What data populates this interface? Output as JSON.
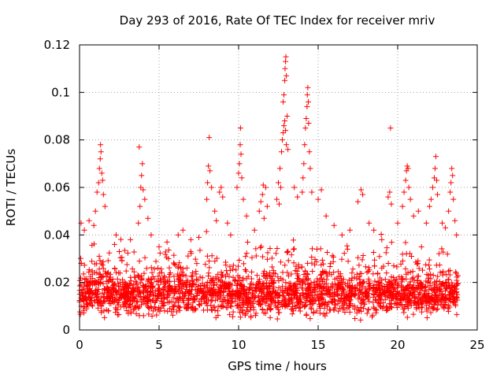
{
  "chart_data": {
    "type": "scatter",
    "title": "Day 293 of 2016, Rate Of TEC Index for receiver mriv",
    "xlabel": "GPS time / hours",
    "ylabel": "ROTI / TECUs",
    "xlim": [
      0,
      25
    ],
    "ylim": [
      0,
      0.12
    ],
    "x_ticks": [
      0,
      5,
      10,
      15,
      20,
      25
    ],
    "x_tick_labels": [
      "0",
      "5",
      "10",
      "15",
      "20",
      "25"
    ],
    "y_ticks": [
      0,
      0.02,
      0.04,
      0.06,
      0.08,
      0.1,
      0.12
    ],
    "y_tick_labels": [
      "0",
      "0.02",
      "0.04",
      "0.06",
      "0.08",
      "0.1",
      "0.12"
    ],
    "grid": true,
    "marker": "+",
    "color": "#ff0000",
    "baseline": {
      "x_range": [
        0,
        23.8
      ],
      "y_center": 0.015,
      "y_spread": 0.012,
      "note": "dense band of ROTI values approx 0.003-0.035 TECU across 0-23.8 h"
    },
    "series": [
      {
        "name": "ROTI",
        "points": [
          [
            0.1,
            0.045
          ],
          [
            0.3,
            0.042
          ],
          [
            0.6,
            0.046
          ],
          [
            0.9,
            0.044
          ],
          [
            1.0,
            0.05
          ],
          [
            1.1,
            0.058
          ],
          [
            1.2,
            0.062
          ],
          [
            1.25,
            0.068
          ],
          [
            1.3,
            0.072
          ],
          [
            1.32,
            0.078
          ],
          [
            1.35,
            0.075
          ],
          [
            1.4,
            0.066
          ],
          [
            1.45,
            0.063
          ],
          [
            1.5,
            0.057
          ],
          [
            1.6,
            0.052
          ],
          [
            2.2,
            0.036
          ],
          [
            2.3,
            0.04
          ],
          [
            2.5,
            0.033
          ],
          [
            3.2,
            0.038
          ],
          [
            3.7,
            0.045
          ],
          [
            3.8,
            0.052
          ],
          [
            3.85,
            0.06
          ],
          [
            3.9,
            0.065
          ],
          [
            3.75,
            0.077
          ],
          [
            3.95,
            0.07
          ],
          [
            4.0,
            0.059
          ],
          [
            4.1,
            0.055
          ],
          [
            4.3,
            0.047
          ],
          [
            4.5,
            0.04
          ],
          [
            5.0,
            0.035
          ],
          [
            5.5,
            0.037
          ],
          [
            6.2,
            0.04
          ],
          [
            6.5,
            0.042
          ],
          [
            7.0,
            0.038
          ],
          [
            7.5,
            0.039
          ],
          [
            8.0,
            0.055
          ],
          [
            8.05,
            0.062
          ],
          [
            8.1,
            0.069
          ],
          [
            8.15,
            0.081
          ],
          [
            8.2,
            0.067
          ],
          [
            8.3,
            0.06
          ],
          [
            8.5,
            0.05
          ],
          [
            8.6,
            0.046
          ],
          [
            8.8,
            0.058
          ],
          [
            8.9,
            0.06
          ],
          [
            9.0,
            0.056
          ],
          [
            9.3,
            0.045
          ],
          [
            9.5,
            0.04
          ],
          [
            9.9,
            0.06
          ],
          [
            10.0,
            0.066
          ],
          [
            10.05,
            0.07
          ],
          [
            10.1,
            0.078
          ],
          [
            10.12,
            0.085
          ],
          [
            10.15,
            0.074
          ],
          [
            10.2,
            0.064
          ],
          [
            10.3,
            0.055
          ],
          [
            10.5,
            0.048
          ],
          [
            11.0,
            0.042
          ],
          [
            11.3,
            0.05
          ],
          [
            11.4,
            0.054
          ],
          [
            11.6,
            0.047
          ],
          [
            11.5,
            0.057
          ],
          [
            11.55,
            0.061
          ],
          [
            11.7,
            0.06
          ],
          [
            11.8,
            0.052
          ],
          [
            12.4,
            0.055
          ],
          [
            12.5,
            0.062
          ],
          [
            12.6,
            0.068
          ],
          [
            12.7,
            0.075
          ],
          [
            12.8,
            0.083
          ],
          [
            12.85,
            0.086
          ],
          [
            12.9,
            0.088
          ],
          [
            12.75,
            0.08
          ],
          [
            12.95,
            0.084
          ],
          [
            13.0,
            0.078
          ],
          [
            12.55,
            0.053
          ],
          [
            12.65,
            0.06
          ],
          [
            12.8,
            0.096
          ],
          [
            12.85,
            0.099
          ],
          [
            12.9,
            0.105
          ],
          [
            12.92,
            0.11
          ],
          [
            12.95,
            0.113
          ],
          [
            12.97,
            0.115
          ],
          [
            13.0,
            0.107
          ],
          [
            13.05,
            0.09
          ],
          [
            13.1,
            0.076
          ],
          [
            13.5,
            0.06
          ],
          [
            13.7,
            0.056
          ],
          [
            14.0,
            0.058
          ],
          [
            14.05,
            0.064
          ],
          [
            14.1,
            0.07
          ],
          [
            14.15,
            0.078
          ],
          [
            14.2,
            0.085
          ],
          [
            14.25,
            0.089
          ],
          [
            14.3,
            0.094
          ],
          [
            14.32,
            0.099
          ],
          [
            14.35,
            0.102
          ],
          [
            14.38,
            0.096
          ],
          [
            14.4,
            0.087
          ],
          [
            14.45,
            0.075
          ],
          [
            14.5,
            0.068
          ],
          [
            14.6,
            0.058
          ],
          [
            15.0,
            0.055
          ],
          [
            15.2,
            0.059
          ],
          [
            15.5,
            0.048
          ],
          [
            16.0,
            0.044
          ],
          [
            16.5,
            0.04
          ],
          [
            17.0,
            0.042
          ],
          [
            17.5,
            0.054
          ],
          [
            17.7,
            0.059
          ],
          [
            17.8,
            0.057
          ],
          [
            18.2,
            0.045
          ],
          [
            18.5,
            0.042
          ],
          [
            19.0,
            0.038
          ],
          [
            19.4,
            0.056
          ],
          [
            19.5,
            0.058
          ],
          [
            19.55,
            0.085
          ],
          [
            19.6,
            0.053
          ],
          [
            20.0,
            0.045
          ],
          [
            20.3,
            0.052
          ],
          [
            20.4,
            0.058
          ],
          [
            20.5,
            0.063
          ],
          [
            20.55,
            0.067
          ],
          [
            20.6,
            0.069
          ],
          [
            20.65,
            0.068
          ],
          [
            20.7,
            0.06
          ],
          [
            20.8,
            0.055
          ],
          [
            21.0,
            0.048
          ],
          [
            21.3,
            0.05
          ],
          [
            21.8,
            0.045
          ],
          [
            22.0,
            0.052
          ],
          [
            22.1,
            0.055
          ],
          [
            22.2,
            0.06
          ],
          [
            22.3,
            0.064
          ],
          [
            22.35,
            0.068
          ],
          [
            22.4,
            0.073
          ],
          [
            22.45,
            0.063
          ],
          [
            22.5,
            0.057
          ],
          [
            22.8,
            0.045
          ],
          [
            23.0,
            0.043
          ],
          [
            23.2,
            0.05
          ],
          [
            23.3,
            0.058
          ],
          [
            23.35,
            0.062
          ],
          [
            23.4,
            0.068
          ],
          [
            23.45,
            0.065
          ],
          [
            23.5,
            0.055
          ],
          [
            23.6,
            0.046
          ],
          [
            23.7,
            0.04
          ]
        ]
      }
    ]
  }
}
